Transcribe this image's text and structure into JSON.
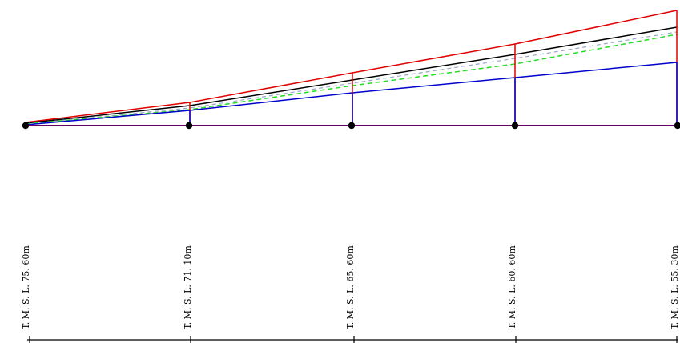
{
  "colors": {
    "background": "#ffffff",
    "red": "#e00000",
    "black": "#000000",
    "blue": "#0000cc",
    "green_dashed": "#22dd22",
    "grey_dashed": "#9aa6c8",
    "baseline": "#660066",
    "node": "#000000"
  },
  "stations": [
    {
      "label": "T. M. S. L. 75. 60m"
    },
    {
      "label": "T. M. S. L. 71. 10m"
    },
    {
      "label": "T. M. S. L. 65. 60m"
    },
    {
      "label": "T. M. S. L. 60. 60m"
    },
    {
      "label": "T. M. S. L. 55. 30m"
    }
  ]
}
